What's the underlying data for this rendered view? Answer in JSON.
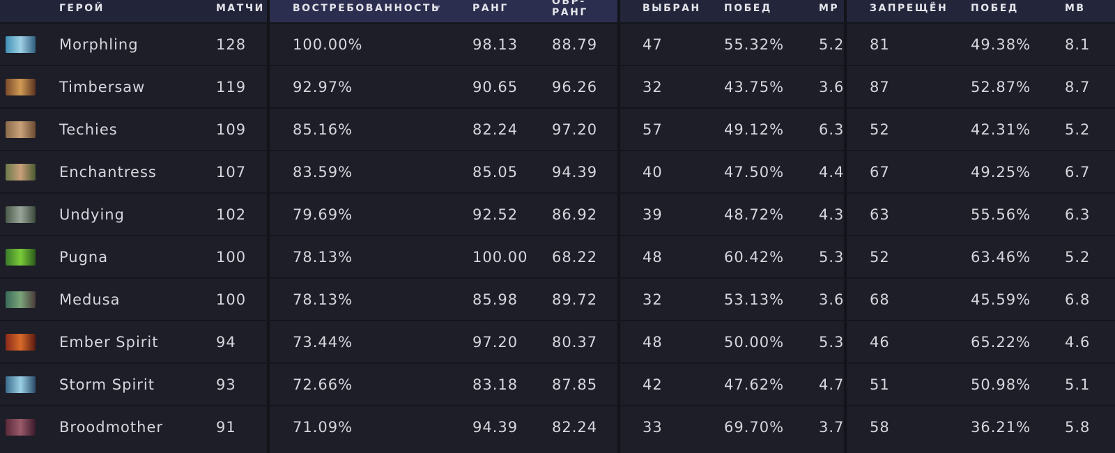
{
  "table": {
    "headers": [
      "ГЕРОЙ",
      "МАТЧИ",
      "ВОСТРЕБОВАННОСТЬ",
      "РАНГ",
      "ОБР-РАНГ",
      "ВЫБРАН",
      "ПОБЕД",
      "МР",
      "ЗАПРЕЩЁН",
      "ПОБЕД",
      "МВ"
    ],
    "rows": [
      [
        "Morphling",
        "128",
        "100.00%",
        "98.13",
        "88.79",
        "47",
        "55.32%",
        "5.2",
        "81",
        "49.38%",
        "8.1"
      ],
      [
        "Timbersaw",
        "119",
        "92.97%",
        "90.65",
        "96.26",
        "32",
        "43.75%",
        "3.6",
        "87",
        "52.87%",
        "8.7"
      ],
      [
        "Techies",
        "109",
        "85.16%",
        "82.24",
        "97.20",
        "57",
        "49.12%",
        "6.3",
        "52",
        "42.31%",
        "5.2"
      ],
      [
        "Enchantress",
        "107",
        "83.59%",
        "85.05",
        "94.39",
        "40",
        "47.50%",
        "4.4",
        "67",
        "49.25%",
        "6.7"
      ],
      [
        "Undying",
        "102",
        "79.69%",
        "92.52",
        "86.92",
        "39",
        "48.72%",
        "4.3",
        "63",
        "55.56%",
        "6.3"
      ],
      [
        "Pugna",
        "100",
        "78.13%",
        "100.00",
        "68.22",
        "48",
        "60.42%",
        "5.3",
        "52",
        "63.46%",
        "5.2"
      ],
      [
        "Medusa",
        "100",
        "78.13%",
        "85.98",
        "89.72",
        "32",
        "53.13%",
        "3.6",
        "68",
        "45.59%",
        "6.8"
      ],
      [
        "Ember Spirit",
        "94",
        "73.44%",
        "97.20",
        "80.37",
        "48",
        "50.00%",
        "5.3",
        "46",
        "65.22%",
        "4.6"
      ],
      [
        "Storm Spirit",
        "93",
        "72.66%",
        "83.18",
        "87.85",
        "42",
        "47.62%",
        "4.7",
        "51",
        "50.98%",
        "5.1"
      ],
      [
        "Broodmother",
        "91",
        "71.09%",
        "94.39",
        "82.24",
        "33",
        "69.70%",
        "3.7",
        "58",
        "36.21%",
        "5.8"
      ]
    ]
  }
}
